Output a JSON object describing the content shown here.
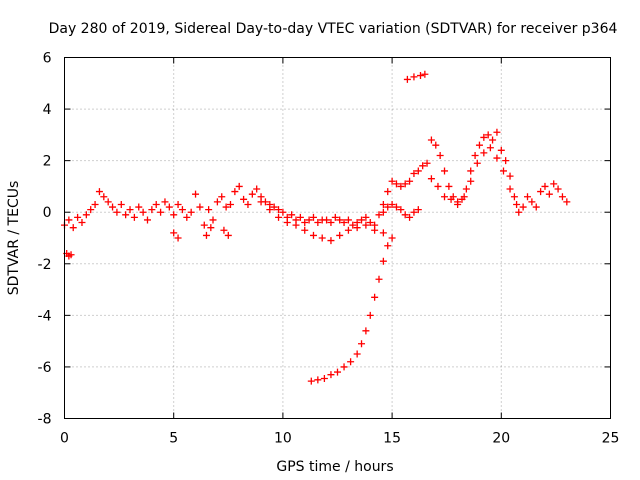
{
  "chart_data": {
    "type": "scatter",
    "title": "Day 280 of 2019, Sidereal Day-to-day VTEC variation (SDTVAR) for receiver p364",
    "xlabel": "GPS time / hours",
    "ylabel": "SDTVAR / TECUs",
    "xlim": [
      0,
      25
    ],
    "ylim": [
      -8,
      6
    ],
    "x_ticks": [
      0,
      5,
      10,
      15,
      20,
      25
    ],
    "y_ticks": [
      -8,
      -6,
      -4,
      -2,
      0,
      2,
      4,
      6
    ],
    "x_tick_labels": [
      "0",
      "5",
      "10",
      "15",
      "20",
      "25"
    ],
    "y_tick_labels": [
      "-8",
      "-6",
      "-4",
      "-2",
      "0",
      "2",
      "4",
      "6"
    ],
    "grid": true,
    "marker": "+",
    "color": "#ff0000",
    "series": [
      {
        "name": "main",
        "x": [
          0.0,
          0.2,
          0.4,
          0.6,
          0.8,
          1.0,
          1.2,
          1.4,
          1.6,
          1.8,
          2.0,
          2.2,
          2.4,
          2.6,
          2.8,
          3.0,
          3.2,
          3.4,
          3.6,
          3.8,
          4.0,
          4.2,
          4.4,
          4.6,
          4.8,
          5.0,
          5.2,
          5.4,
          5.6,
          5.8,
          6.0,
          6.2,
          6.4,
          6.6,
          6.8,
          7.0,
          7.2,
          7.4,
          7.6,
          7.8,
          8.0,
          8.2,
          8.4,
          8.6,
          8.8,
          9.0,
          9.2,
          9.4,
          9.6,
          9.8,
          10.0,
          10.2,
          10.4,
          10.6,
          10.8,
          11.0,
          11.2,
          11.4,
          11.6,
          11.8,
          12.0,
          12.2,
          12.4,
          12.6,
          12.8,
          13.0,
          13.2,
          13.4,
          13.6,
          13.8,
          14.0,
          14.2,
          14.4,
          14.6,
          14.8,
          15.0,
          15.2,
          15.4,
          15.6,
          15.8,
          16.0,
          16.2,
          16.4,
          16.6
        ],
        "y": [
          -0.5,
          -0.3,
          -0.6,
          -0.2,
          -0.4,
          -0.1,
          0.1,
          0.3,
          0.8,
          0.6,
          0.4,
          0.2,
          0.0,
          0.3,
          -0.1,
          0.1,
          -0.2,
          0.2,
          0.0,
          -0.3,
          0.1,
          0.3,
          0.0,
          0.4,
          0.2,
          -0.1,
          0.3,
          0.1,
          -0.2,
          0.0,
          0.7,
          0.2,
          -0.5,
          0.1,
          -0.3,
          0.4,
          0.6,
          0.2,
          0.3,
          0.8,
          1.0,
          0.5,
          0.3,
          0.7,
          0.9,
          0.6,
          0.4,
          0.3,
          0.2,
          0.1,
          0.0,
          -0.2,
          -0.1,
          -0.3,
          -0.2,
          -0.4,
          -0.3,
          -0.2,
          -0.4,
          -0.3,
          -0.3,
          -0.4,
          -0.2,
          -0.3,
          -0.4,
          -0.3,
          -0.5,
          -0.4,
          -0.3,
          -0.2,
          -0.4,
          -0.5,
          -0.1,
          0.3,
          0.8,
          1.2,
          1.1,
          1.0,
          1.1,
          1.2,
          1.5,
          1.6,
          1.8,
          1.9
        ]
      },
      {
        "name": "lower-loop",
        "x": [
          9.0,
          9.4,
          9.8,
          10.2,
          10.6,
          11.0,
          11.4,
          11.8,
          12.2,
          12.6,
          13.0,
          13.4,
          13.8,
          14.2,
          14.6
        ],
        "y": [
          0.4,
          0.1,
          -0.2,
          -0.4,
          -0.5,
          -0.7,
          -0.9,
          -1.0,
          -1.1,
          -0.9,
          -0.7,
          -0.6,
          -0.5,
          -0.7,
          -0.8
        ]
      },
      {
        "name": "upper-loop",
        "x": [
          14.6,
          14.8,
          15.0,
          15.2,
          15.4,
          15.6,
          15.8,
          16.0,
          16.2
        ],
        "y": [
          0.0,
          0.2,
          0.3,
          0.2,
          0.1,
          -0.1,
          -0.2,
          0.0,
          0.1
        ]
      },
      {
        "name": "small-drops",
        "x": [
          5.0,
          5.2,
          6.5,
          6.7,
          7.3,
          7.5
        ],
        "y": [
          -0.8,
          -1.0,
          -0.9,
          -0.6,
          -0.7,
          -0.9
        ]
      },
      {
        "name": "descending-arc",
        "x": [
          11.3,
          11.6,
          11.9,
          12.2,
          12.5,
          12.8,
          13.1,
          13.4,
          13.6,
          13.8,
          14.0,
          14.2,
          14.4,
          14.6,
          14.8,
          15.0
        ],
        "y": [
          -6.55,
          -6.5,
          -6.45,
          -6.3,
          -6.2,
          -6.0,
          -5.8,
          -5.5,
          -5.1,
          -4.6,
          -4.0,
          -3.3,
          -2.6,
          -1.9,
          -1.3,
          -1.0
        ]
      },
      {
        "name": "isolated-low",
        "x": [
          0.1,
          0.2,
          0.3
        ],
        "y": [
          -1.6,
          -1.7,
          -1.65
        ]
      },
      {
        "name": "isolated-high",
        "x": [
          15.7,
          16.0,
          16.3,
          16.5
        ],
        "y": [
          5.15,
          5.25,
          5.3,
          5.35
        ]
      },
      {
        "name": "afternoon",
        "x": [
          16.8,
          17.0,
          17.2,
          17.4,
          17.6,
          17.8,
          18.0,
          18.2,
          18.4,
          18.6,
          18.8,
          19.0,
          19.2,
          19.4,
          19.6,
          19.8,
          20.0,
          20.2,
          20.4,
          20.6,
          20.8,
          21.0,
          21.2,
          21.4,
          21.6,
          21.8,
          22.0,
          22.2,
          22.4,
          22.6,
          22.8,
          23.0
        ],
        "y": [
          2.8,
          2.6,
          2.2,
          1.6,
          1.0,
          0.6,
          0.4,
          0.5,
          0.9,
          1.6,
          2.2,
          2.6,
          2.9,
          3.0,
          2.8,
          3.1,
          2.4,
          2.0,
          1.4,
          0.6,
          0.0,
          0.2,
          0.6,
          0.4,
          0.2,
          0.8,
          1.0,
          0.7,
          1.1,
          0.9,
          0.6,
          0.4
        ]
      },
      {
        "name": "afternoon-dip",
        "x": [
          16.8,
          17.1,
          17.4,
          17.7,
          18.0,
          18.3,
          18.6,
          18.9,
          19.2,
          19.5,
          19.8,
          20.1,
          20.4,
          20.7
        ],
        "y": [
          1.3,
          1.0,
          0.6,
          0.5,
          0.3,
          0.6,
          1.2,
          1.9,
          2.3,
          2.5,
          2.1,
          1.6,
          0.9,
          0.3
        ]
      }
    ]
  }
}
